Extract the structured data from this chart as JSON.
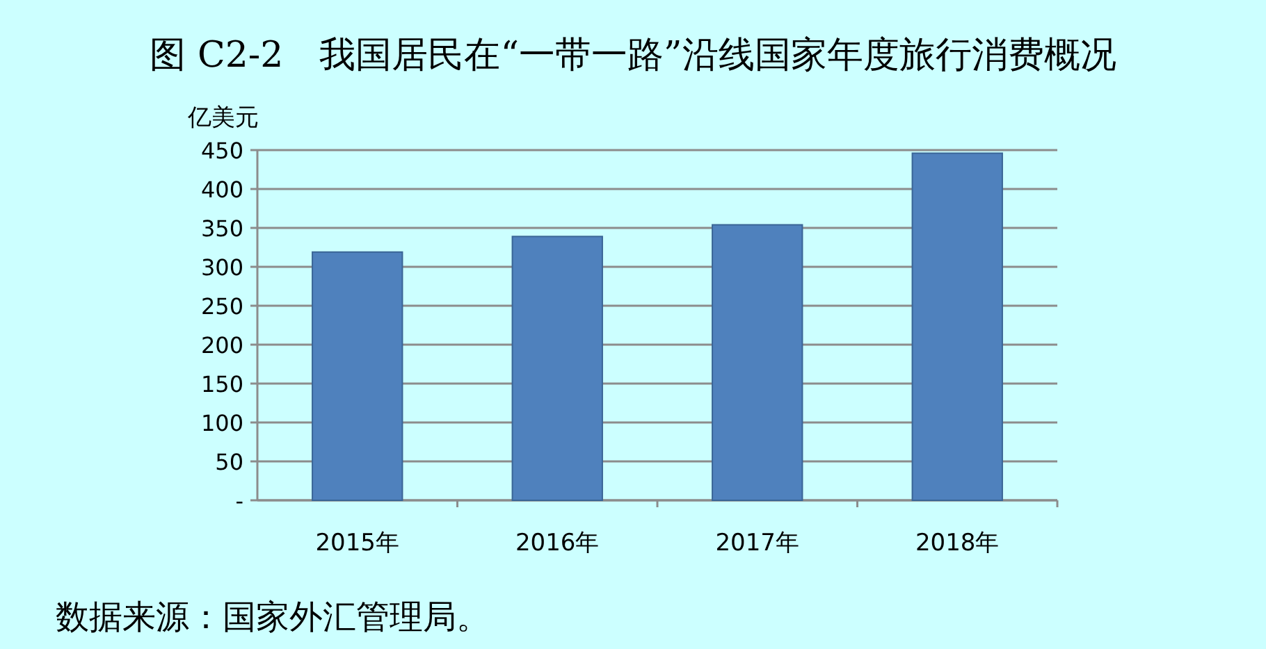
{
  "chart_data": {
    "type": "bar",
    "title": "图 C2-2　我国居民在“一带一路”沿线国家年度旅行消费概况",
    "ylabel": "亿美元",
    "categories": [
      "2015年",
      "2016年",
      "2017年",
      "2018年"
    ],
    "values": [
      319,
      339,
      354,
      446
    ],
    "color": "#4f81bd",
    "ylim": [
      0,
      450
    ],
    "yticks": [
      {
        "value": 0,
        "label": "-"
      },
      50,
      100,
      150,
      200,
      250,
      300,
      350,
      400,
      450
    ],
    "grid": "y",
    "annotations": [
      "数据来源：国家外汇管理局。"
    ]
  }
}
